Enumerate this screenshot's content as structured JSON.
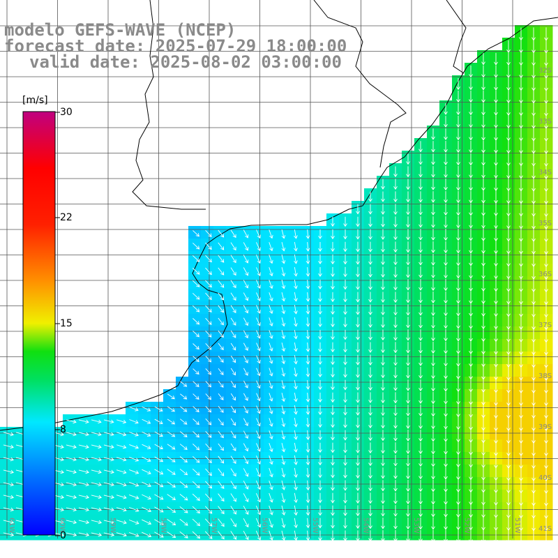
{
  "title": {
    "line1": "modelo GEFS-WAVE (NCEP)",
    "line2": "forecast date: 2025-07-29 18:00:00",
    "line3": "valid date: 2025-08-02 03:00:00"
  },
  "colorbar": {
    "unit": "[m/s]",
    "ticks": [
      "30",
      "22",
      "15",
      "8",
      "0"
    ],
    "min": 0,
    "max": 30,
    "stops": [
      {
        "value": 0,
        "color": "#0000ff"
      },
      {
        "value": 4,
        "color": "#0070ff"
      },
      {
        "value": 8,
        "color": "#00e8ff"
      },
      {
        "value": 11,
        "color": "#00e060"
      },
      {
        "value": 13,
        "color": "#10e010"
      },
      {
        "value": 15,
        "color": "#f0f000"
      },
      {
        "value": 18,
        "color": "#ff9000"
      },
      {
        "value": 22,
        "color": "#ff2000"
      },
      {
        "value": 26,
        "color": "#ff0000"
      },
      {
        "value": 30,
        "color": "#c00080"
      }
    ]
  },
  "grid": {
    "latitude_labels": [
      "32S",
      "33S",
      "34S",
      "35S",
      "36S",
      "37S",
      "38S",
      "39S",
      "40S",
      "41S"
    ],
    "longitude_labels": [
      "61W",
      "60W",
      "59W",
      "58W",
      "57W",
      "56W",
      "55W",
      "54W",
      "53W",
      "52W",
      "51W"
    ]
  },
  "field": {
    "variable": "wind speed",
    "units": "m/s",
    "arrow_color": "#ffffff",
    "coastline_color": "#000000"
  }
}
